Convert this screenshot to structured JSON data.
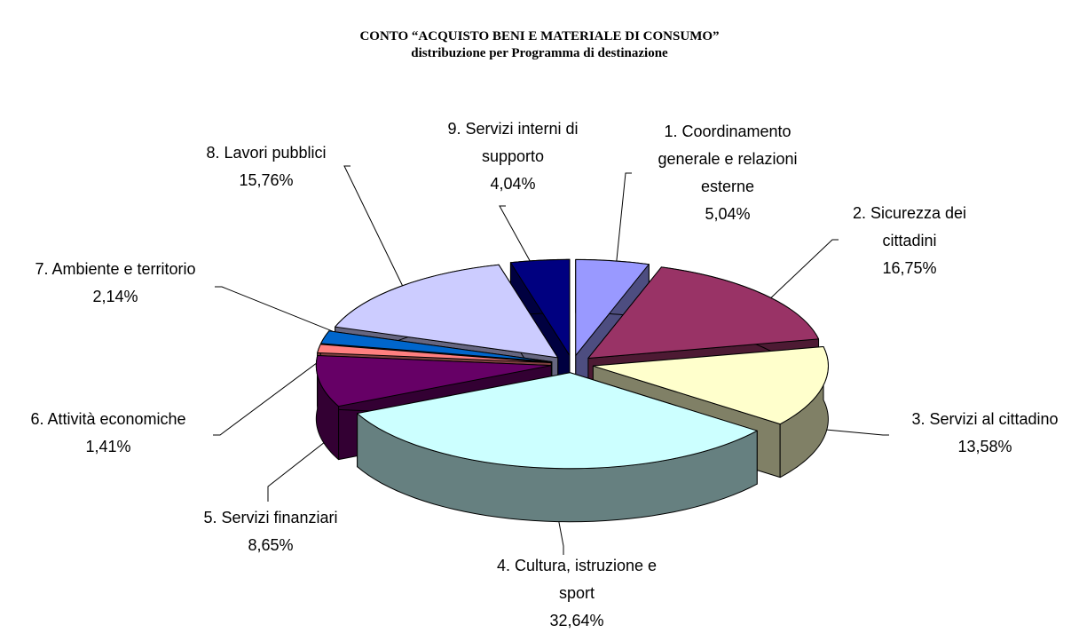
{
  "chart_data": {
    "type": "pie",
    "title": "CONTO “ACQUISTO BENI E MATERIALE DI CONSUMO”",
    "subtitle": "distribuzione per Programma di destinazione",
    "categories": [
      "1. Coordinamento generale e relazioni esterne",
      "2. Sicurezza dei cittadini",
      "3. Servizi al cittadino",
      "4. Cultura, istruzione e sport",
      "5. Servizi finanziari",
      "6. Attività economiche",
      "7. Ambiente e territorio",
      "8. Lavori pubblici",
      "9. Servizi interni di supporto"
    ],
    "values": [
      5.04,
      16.75,
      13.58,
      32.64,
      8.65,
      1.41,
      2.14,
      15.76,
      4.04
    ],
    "value_labels": [
      "5,04%",
      "16,75%",
      "13,58%",
      "32,64%",
      "8,65%",
      "1,41%",
      "2,14%",
      "15,76%",
      "4,04%"
    ],
    "colors": [
      "#9999ff",
      "#993366",
      "#ffffcc",
      "#ccffff",
      "#660066",
      "#ff8080",
      "#0066cc",
      "#ccccff",
      "#000080"
    ]
  }
}
